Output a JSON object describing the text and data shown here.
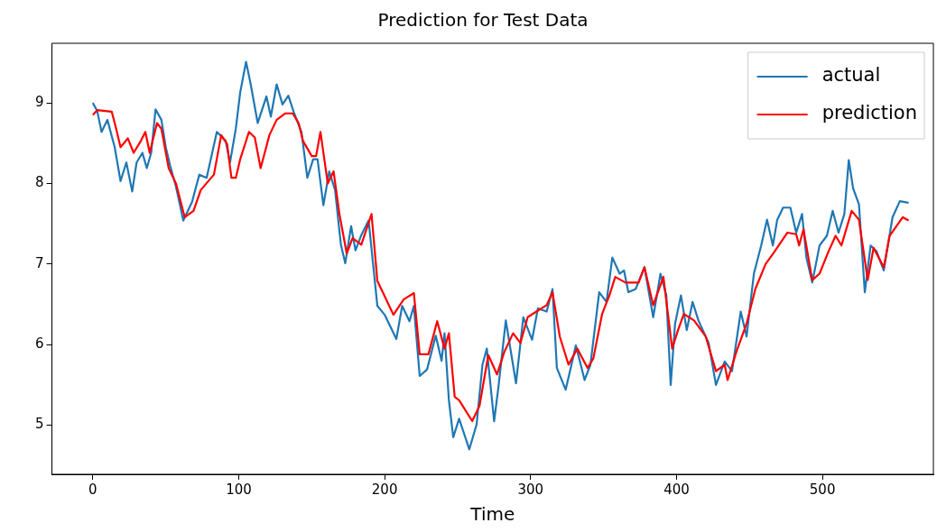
{
  "chart_data": {
    "type": "line",
    "title": "Prediction for Test Data",
    "xlabel": "Time",
    "xlim": [
      -28,
      576
    ],
    "ylim": [
      4.39,
      9.74
    ],
    "xticks": [
      0,
      100,
      200,
      300,
      400,
      500
    ],
    "yticks": [
      5,
      6,
      7,
      8,
      9
    ],
    "grid": false,
    "legend": "top right",
    "marker": "none",
    "line_style": "solid",
    "series": [
      {
        "name": "actual",
        "color": "#1f77b4",
        "x": [
          0,
          3,
          6,
          10,
          15,
          19,
          23,
          27,
          30,
          34,
          37,
          40,
          43,
          47,
          50,
          53,
          57,
          62,
          68,
          73,
          78,
          85,
          91,
          94,
          98,
          101,
          105,
          108,
          113,
          119,
          122,
          126,
          130,
          134,
          138,
          143,
          147,
          151,
          154,
          158,
          162,
          166,
          170,
          173,
          177,
          180,
          184,
          189,
          192,
          195,
          200,
          204,
          208,
          212,
          217,
          220,
          224,
          229,
          235,
          239,
          241,
          244,
          247,
          251,
          258,
          263,
          267,
          270,
          275,
          278,
          283,
          290,
          295,
          301,
          305,
          311,
          315,
          318,
          324,
          328,
          331,
          337,
          341,
          347,
          352,
          356,
          361,
          364,
          367,
          372,
          378,
          384,
          389,
          393,
          396,
          399,
          403,
          407,
          411,
          415,
          422,
          427,
          433,
          438,
          444,
          448,
          453,
          458,
          462,
          466,
          469,
          473,
          478,
          482,
          486,
          489,
          493,
          498,
          503,
          507,
          511,
          515,
          518,
          521,
          525,
          529,
          533,
          537,
          542,
          548,
          553,
          559
        ],
        "values": [
          9.0,
          8.9,
          8.64,
          8.79,
          8.45,
          8.03,
          8.26,
          7.9,
          8.26,
          8.38,
          8.19,
          8.38,
          8.92,
          8.79,
          8.45,
          8.22,
          7.96,
          7.54,
          7.77,
          8.11,
          8.07,
          8.64,
          8.53,
          8.26,
          8.68,
          9.13,
          9.51,
          9.25,
          8.75,
          9.08,
          8.83,
          9.23,
          8.98,
          9.09,
          8.87,
          8.64,
          8.07,
          8.3,
          8.3,
          7.73,
          8.15,
          7.92,
          7.24,
          7.01,
          7.47,
          7.17,
          7.36,
          7.54,
          7.01,
          6.48,
          6.37,
          6.22,
          6.07,
          6.48,
          6.29,
          6.48,
          5.61,
          5.69,
          6.11,
          5.8,
          6.14,
          5.31,
          4.85,
          5.08,
          4.7,
          5.01,
          5.75,
          5.95,
          5.05,
          5.48,
          6.3,
          5.52,
          6.34,
          6.06,
          6.45,
          6.41,
          6.69,
          5.71,
          5.44,
          5.75,
          5.99,
          5.56,
          5.75,
          6.65,
          6.53,
          7.08,
          6.88,
          6.92,
          6.65,
          6.69,
          6.96,
          6.34,
          6.88,
          6.61,
          5.5,
          6.26,
          6.61,
          6.18,
          6.53,
          6.3,
          6.02,
          5.5,
          5.79,
          5.67,
          6.41,
          6.1,
          6.88,
          7.23,
          7.55,
          7.23,
          7.55,
          7.7,
          7.7,
          7.39,
          7.62,
          7.08,
          6.77,
          7.23,
          7.35,
          7.66,
          7.39,
          7.62,
          8.29,
          7.94,
          7.74,
          6.65,
          7.23,
          7.16,
          6.92,
          7.58,
          7.78,
          7.76
        ]
      },
      {
        "name": "prediction",
        "color": "#ff0000",
        "x": [
          0,
          3,
          13,
          16,
          19,
          24,
          28,
          33,
          36,
          39,
          44,
          47,
          52,
          57,
          63,
          69,
          74,
          83,
          88,
          92,
          95,
          98,
          101,
          107,
          111,
          115,
          121,
          126,
          132,
          137,
          141,
          144,
          150,
          153,
          156,
          161,
          165,
          169,
          174,
          178,
          184,
          191,
          195,
          200,
          206,
          213,
          220,
          224,
          230,
          236,
          241,
          244,
          248,
          251,
          260,
          265,
          271,
          277,
          282,
          288,
          293,
          298,
          304,
          311,
          315,
          320,
          326,
          332,
          339,
          343,
          349,
          354,
          358,
          365,
          374,
          378,
          384,
          391,
          397,
          401,
          405,
          412,
          420,
          427,
          433,
          435,
          441,
          448,
          454,
          461,
          467,
          476,
          482,
          484,
          487,
          493,
          498,
          504,
          509,
          513,
          520,
          525,
          531,
          535,
          542,
          546,
          555,
          559
        ],
        "values": [
          8.85,
          8.91,
          8.89,
          8.68,
          8.45,
          8.56,
          8.38,
          8.53,
          8.64,
          8.38,
          8.75,
          8.68,
          8.19,
          8.0,
          7.58,
          7.66,
          7.92,
          8.11,
          8.6,
          8.49,
          8.07,
          8.07,
          8.3,
          8.64,
          8.57,
          8.19,
          8.6,
          8.79,
          8.87,
          8.87,
          8.75,
          8.53,
          8.34,
          8.34,
          8.64,
          8.0,
          8.15,
          7.62,
          7.13,
          7.32,
          7.24,
          7.62,
          6.79,
          6.6,
          6.37,
          6.56,
          6.64,
          5.88,
          5.88,
          6.29,
          5.95,
          6.14,
          5.35,
          5.31,
          5.05,
          5.24,
          5.87,
          5.63,
          5.91,
          6.14,
          6.02,
          6.34,
          6.41,
          6.49,
          6.65,
          6.1,
          5.75,
          5.95,
          5.71,
          5.83,
          6.38,
          6.61,
          6.84,
          6.77,
          6.77,
          6.96,
          6.49,
          6.84,
          5.95,
          6.18,
          6.38,
          6.3,
          6.1,
          5.67,
          5.75,
          5.56,
          5.91,
          6.26,
          6.69,
          7.0,
          7.15,
          7.39,
          7.37,
          7.23,
          7.43,
          6.8,
          6.88,
          7.15,
          7.35,
          7.23,
          7.66,
          7.55,
          6.8,
          7.2,
          6.96,
          7.35,
          7.58,
          7.54
        ]
      }
    ]
  }
}
